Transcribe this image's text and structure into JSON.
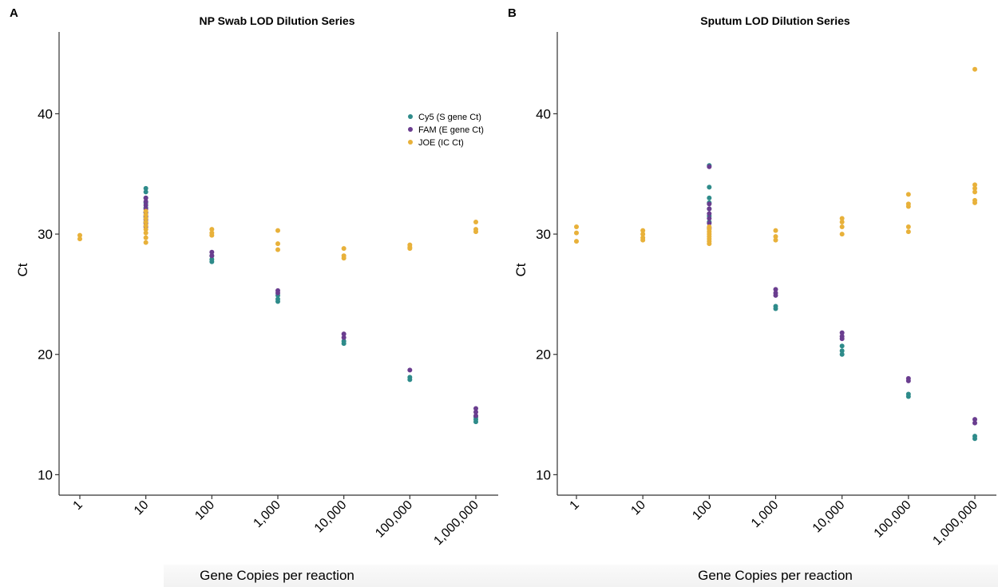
{
  "panels": [
    {
      "letter": "A"
    },
    {
      "letter": "B"
    }
  ],
  "chart_data": [
    {
      "type": "scatter",
      "title": "NP Swab LOD Dilution Series",
      "xlabel": "Gene Copies per reaction",
      "ylabel": "Ct",
      "x_scale": "categorical",
      "categories": [
        "1",
        "10",
        "100",
        "1,000",
        "10,000",
        "100,000",
        "1,000,000"
      ],
      "yticks": [
        10,
        20,
        30,
        40
      ],
      "ylim": [
        8.3,
        46.8
      ],
      "grid": false,
      "legend": {
        "position": "top-right",
        "entries": [
          "Cy5 (S gene Ct)",
          "FAM (E gene Ct)",
          "JOE (IC Ct)"
        ]
      },
      "series": [
        {
          "name": "Cy5 (S gene Ct)",
          "color": "#2e8b8a",
          "points": [
            [
              "10",
              33.8
            ],
            [
              "10",
              33.5
            ],
            [
              "10",
              33.0
            ],
            [
              "10",
              32.6
            ],
            [
              "10",
              32.2
            ],
            [
              "10",
              31.8
            ],
            [
              "10",
              31.4
            ],
            [
              "10",
              31.0
            ],
            [
              "100",
              28.2
            ],
            [
              "100",
              27.9
            ],
            [
              "100",
              27.7
            ],
            [
              "1,000",
              24.9
            ],
            [
              "1,000",
              24.6
            ],
            [
              "1,000",
              24.4
            ],
            [
              "10,000",
              21.1
            ],
            [
              "10,000",
              20.9
            ],
            [
              "100,000",
              18.1
            ],
            [
              "100,000",
              17.9
            ],
            [
              "1,000,000",
              14.8
            ],
            [
              "1,000,000",
              14.6
            ],
            [
              "1,000,000",
              14.4
            ]
          ]
        },
        {
          "name": "FAM (E gene Ct)",
          "color": "#6a3d8f",
          "points": [
            [
              "10",
              33.0
            ],
            [
              "10",
              32.7
            ],
            [
              "10",
              32.4
            ],
            [
              "10",
              32.1
            ],
            [
              "10",
              31.8
            ],
            [
              "10",
              31.5
            ],
            [
              "10",
              31.2
            ],
            [
              "10",
              30.9
            ],
            [
              "10",
              30.6
            ],
            [
              "100",
              28.5
            ],
            [
              "100",
              28.2
            ],
            [
              "1,000",
              25.3
            ],
            [
              "1,000",
              25.1
            ],
            [
              "10,000",
              21.7
            ],
            [
              "10,000",
              21.4
            ],
            [
              "100,000",
              18.7
            ],
            [
              "1,000,000",
              15.5
            ],
            [
              "1,000,000",
              15.2
            ],
            [
              "1,000,000",
              14.9
            ]
          ]
        },
        {
          "name": "JOE (IC Ct)",
          "color": "#e8b13a",
          "points": [
            [
              "1",
              29.9
            ],
            [
              "1",
              29.6
            ],
            [
              "10",
              31.9
            ],
            [
              "10",
              31.6
            ],
            [
              "10",
              31.3
            ],
            [
              "10",
              31.0
            ],
            [
              "10",
              30.7
            ],
            [
              "10",
              30.4
            ],
            [
              "10",
              30.1
            ],
            [
              "10",
              29.7
            ],
            [
              "10",
              29.3
            ],
            [
              "100",
              30.4
            ],
            [
              "100",
              30.1
            ],
            [
              "100",
              29.9
            ],
            [
              "1,000",
              30.3
            ],
            [
              "1,000",
              29.2
            ],
            [
              "1,000",
              28.7
            ],
            [
              "10,000",
              28.8
            ],
            [
              "10,000",
              28.2
            ],
            [
              "10,000",
              28.0
            ],
            [
              "100,000",
              29.1
            ],
            [
              "100,000",
              28.9
            ],
            [
              "100,000",
              28.8
            ],
            [
              "1,000,000",
              31.0
            ],
            [
              "1,000,000",
              30.4
            ],
            [
              "1,000,000",
              30.2
            ]
          ]
        }
      ]
    },
    {
      "type": "scatter",
      "title": "Sputum LOD Dilution Series",
      "xlabel": "Gene Copies per reaction",
      "ylabel": "Ct",
      "x_scale": "categorical",
      "categories": [
        "1",
        "10",
        "100",
        "1,000",
        "10,000",
        "100,000",
        "1,000,000"
      ],
      "yticks": [
        10,
        20,
        30,
        40
      ],
      "ylim": [
        8.3,
        46.8
      ],
      "grid": false,
      "series": [
        {
          "name": "Cy5 (S gene Ct)",
          "color": "#2e8b8a",
          "points": [
            [
              "100",
              35.7
            ],
            [
              "100",
              33.9
            ],
            [
              "100",
              33.0
            ],
            [
              "100",
              32.6
            ],
            [
              "100",
              32.1
            ],
            [
              "100",
              31.5
            ],
            [
              "100",
              31.0
            ],
            [
              "1,000",
              24.0
            ],
            [
              "1,000",
              23.8
            ],
            [
              "10,000",
              20.7
            ],
            [
              "10,000",
              20.3
            ],
            [
              "10,000",
              20.0
            ],
            [
              "100,000",
              16.7
            ],
            [
              "100,000",
              16.5
            ],
            [
              "1,000,000",
              13.2
            ],
            [
              "1,000,000",
              13.0
            ]
          ]
        },
        {
          "name": "FAM (E gene Ct)",
          "color": "#6a3d8f",
          "points": [
            [
              "100",
              35.6
            ],
            [
              "100",
              32.5
            ],
            [
              "100",
              32.1
            ],
            [
              "100",
              31.7
            ],
            [
              "100",
              31.3
            ],
            [
              "100",
              30.9
            ],
            [
              "100",
              30.5
            ],
            [
              "1,000",
              25.4
            ],
            [
              "1,000",
              25.1
            ],
            [
              "1,000",
              24.9
            ],
            [
              "10,000",
              21.8
            ],
            [
              "10,000",
              21.5
            ],
            [
              "10,000",
              21.3
            ],
            [
              "100,000",
              18.0
            ],
            [
              "100,000",
              17.8
            ],
            [
              "1,000,000",
              14.6
            ],
            [
              "1,000,000",
              14.3
            ]
          ]
        },
        {
          "name": "JOE (IC Ct)",
          "color": "#e8b13a",
          "points": [
            [
              "1",
              30.6
            ],
            [
              "1",
              30.1
            ],
            [
              "1",
              29.4
            ],
            [
              "10",
              30.3
            ],
            [
              "10",
              30.0
            ],
            [
              "10",
              29.7
            ],
            [
              "10",
              29.5
            ],
            [
              "100",
              30.6
            ],
            [
              "100",
              30.4
            ],
            [
              "100",
              30.2
            ],
            [
              "100",
              30.0
            ],
            [
              "100",
              29.8
            ],
            [
              "100",
              29.6
            ],
            [
              "100",
              29.4
            ],
            [
              "100",
              29.2
            ],
            [
              "1,000",
              30.3
            ],
            [
              "1,000",
              29.8
            ],
            [
              "1,000",
              29.5
            ],
            [
              "10,000",
              31.3
            ],
            [
              "10,000",
              31.0
            ],
            [
              "10,000",
              30.6
            ],
            [
              "10,000",
              30.0
            ],
            [
              "100,000",
              33.3
            ],
            [
              "100,000",
              32.5
            ],
            [
              "100,000",
              32.3
            ],
            [
              "100,000",
              30.6
            ],
            [
              "100,000",
              30.2
            ],
            [
              "1,000,000",
              43.7
            ],
            [
              "1,000,000",
              34.1
            ],
            [
              "1,000,000",
              33.8
            ],
            [
              "1,000,000",
              33.5
            ],
            [
              "1,000,000",
              32.8
            ],
            [
              "1,000,000",
              32.6
            ]
          ]
        }
      ]
    }
  ]
}
